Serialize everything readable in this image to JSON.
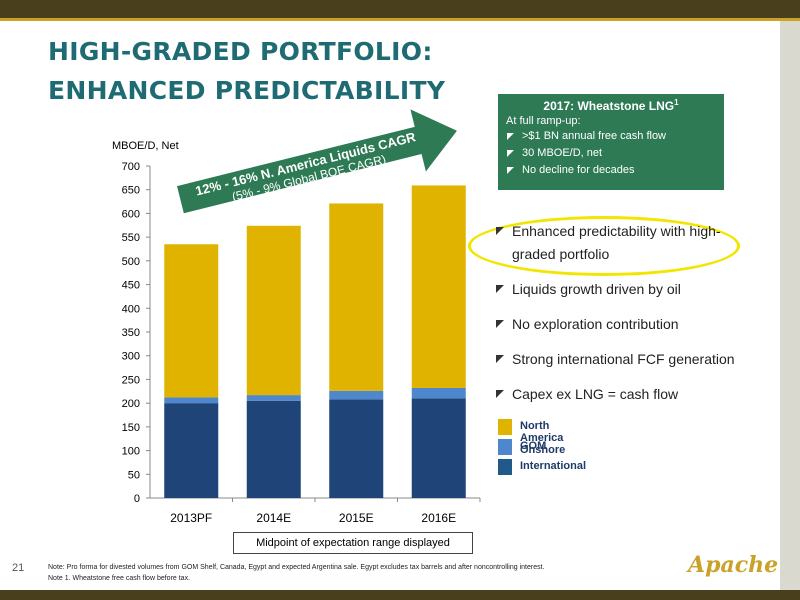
{
  "slide": {
    "title_line1": "HIGH-GRADED PORTFOLIO:",
    "title_line2": "ENHANCED PREDICTABILITY",
    "page_number": "21"
  },
  "chart_data": {
    "type": "bar",
    "stacked": true,
    "ylabel": "MBOE/D, Net",
    "ylim": [
      0,
      700
    ],
    "ytick_step": 50,
    "grid": false,
    "categories": [
      "2013PF",
      "2014E",
      "2015E",
      "2016E"
    ],
    "series": [
      {
        "name": "International",
        "color": "#1f4478",
        "values": [
          200,
          205,
          208,
          210
        ]
      },
      {
        "name": "GOM",
        "color": "#4f87cc",
        "values": [
          12,
          12,
          18,
          22
        ]
      },
      {
        "name": "North America Onshore",
        "color": "#dfb300",
        "values": [
          323,
          357,
          395,
          427
        ]
      }
    ],
    "annotation": {
      "line1": "12% - 16% N. America Liquids CAGR",
      "line2": "(5% - 9% Global BOE CAGR)"
    },
    "footer_box": "Midpoint of expectation range displayed"
  },
  "wheatstone": {
    "title": "2017: Wheatstone LNG",
    "title_note": "1",
    "subtitle": "At full ramp-up:",
    "items": [
      ">$1 BN annual free cash flow",
      "30 MBOE/D, net",
      "No decline for decades"
    ]
  },
  "bullets": [
    "Enhanced predictability with high-graded portfolio",
    "Liquids growth driven by oil",
    "No exploration contribution",
    "Strong international FCF generation",
    "Capex ex LNG = cash flow"
  ],
  "legend": [
    {
      "label": "North America Onshore",
      "color": "#dfb300"
    },
    {
      "label": "GOM",
      "color": "#4f87cc"
    },
    {
      "label": "International",
      "color": "#1f5a8a"
    }
  ],
  "notes": {
    "line1": "Note: Pro forma for divested volumes from GOM Shelf, Canada, Egypt  and expected Argentina sale. Egypt excludes tax barrels and after noncontrolling interest.",
    "line2": "Note 1. Wheatstone free cash flow before tax."
  },
  "logo_text": "Apache"
}
